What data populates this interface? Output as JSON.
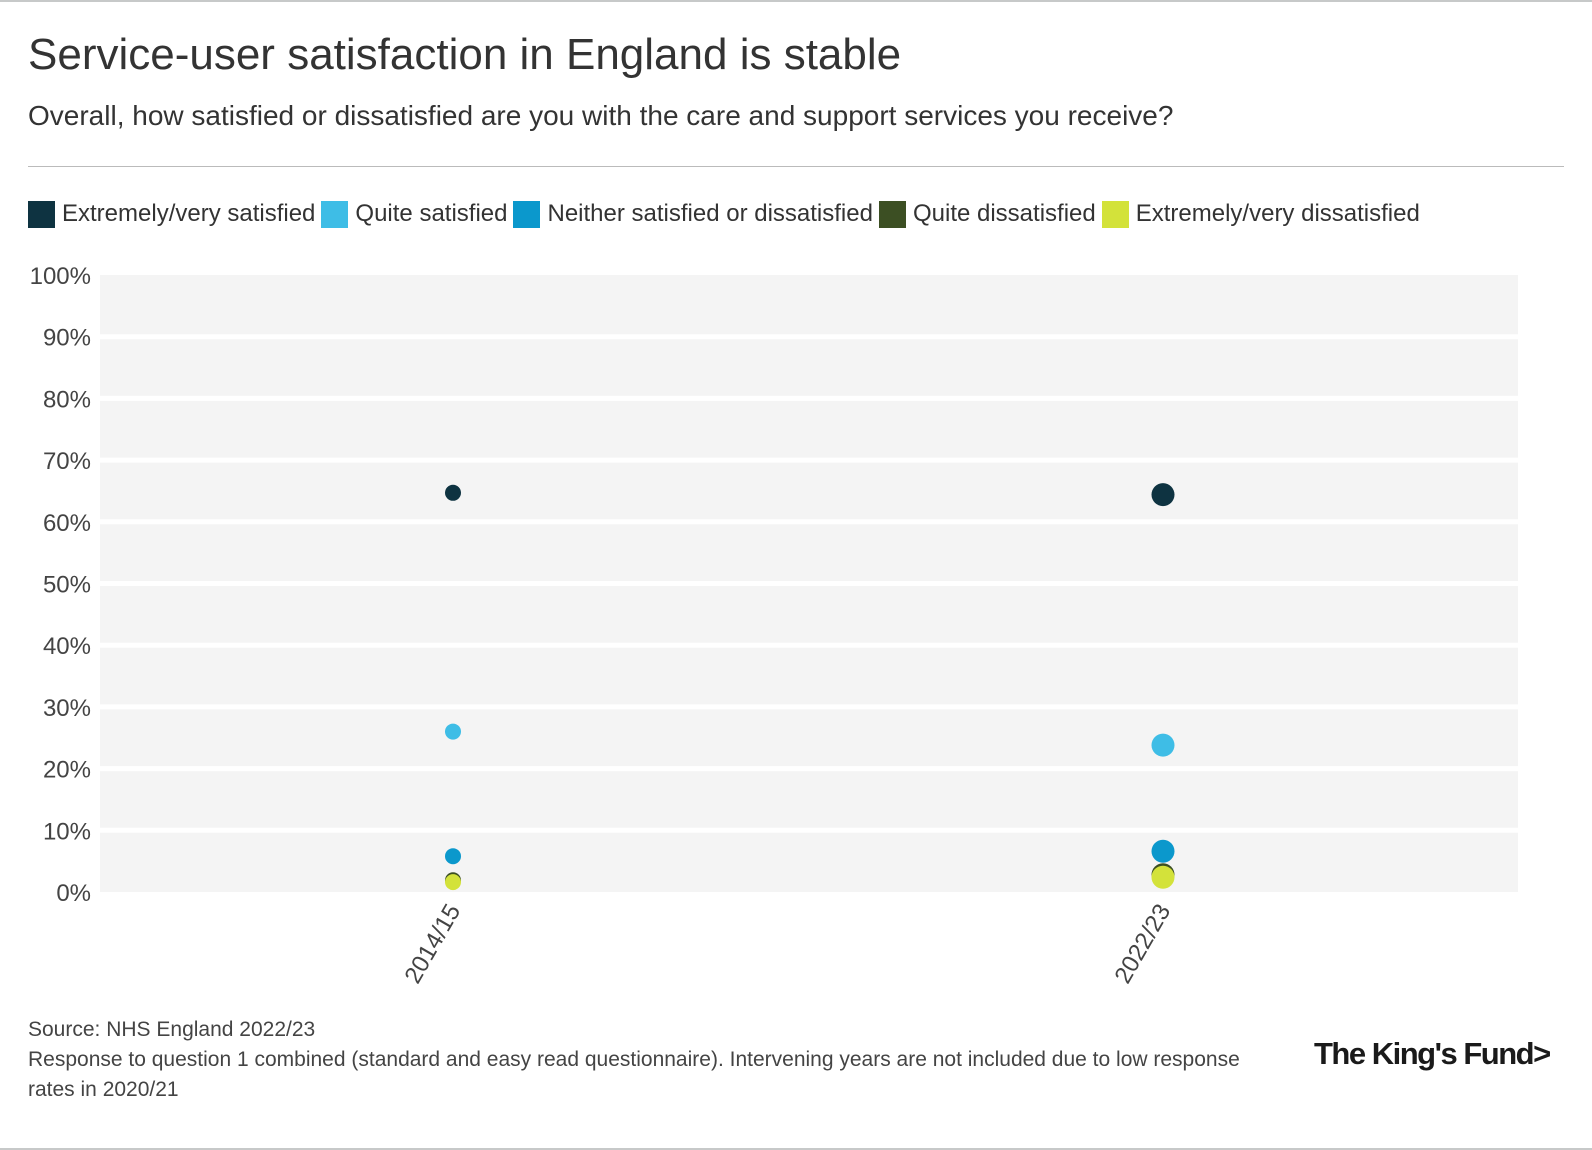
{
  "header": {
    "title": "Service-user satisfaction in England is stable",
    "subtitle": "Overall, how satisfied or dissatisfied are you with the care and support services you receive?"
  },
  "legend": {
    "items": [
      {
        "label": "Extremely/very satisfied",
        "color": "#0e3341"
      },
      {
        "label": "Quite satisfied",
        "color": "#3ebde6"
      },
      {
        "label": "Neither satisfied or dissatisfied",
        "color": "#0b98cc"
      },
      {
        "label": "Quite dissatisfied",
        "color": "#3c4f23"
      },
      {
        "label": "Extremely/very dissatisfied",
        "color": "#d3e23a"
      }
    ]
  },
  "chart_data": {
    "type": "scatter",
    "title": "Service-user satisfaction in England is stable",
    "xlabel": "",
    "ylabel": "",
    "categories": [
      "2014/15",
      "2022/23"
    ],
    "ylim": [
      0,
      100
    ],
    "yticks": [
      0,
      10,
      20,
      30,
      40,
      50,
      60,
      70,
      80,
      90,
      100
    ],
    "ytick_labels": [
      "0%",
      "10%",
      "20%",
      "30%",
      "40%",
      "50%",
      "60%",
      "70%",
      "80%",
      "90%",
      "100%"
    ],
    "grid": true,
    "series": [
      {
        "name": "Extremely/very satisfied",
        "color": "#0e3341",
        "values": [
          64.7,
          64.4
        ]
      },
      {
        "name": "Quite satisfied",
        "color": "#3ebde6",
        "values": [
          26.0,
          23.8
        ]
      },
      {
        "name": "Neither satisfied or dissatisfied",
        "color": "#0b98cc",
        "values": [
          5.8,
          6.6
        ]
      },
      {
        "name": "Quite dissatisfied",
        "color": "#3c4f23",
        "values": [
          1.9,
          2.8
        ]
      },
      {
        "name": "Extremely/very dissatisfied",
        "color": "#d3e23a",
        "values": [
          1.6,
          2.4
        ]
      }
    ]
  },
  "footer": {
    "source": "Source: NHS England 2022/23",
    "note": "Response to question 1 combined (standard and easy read questionnaire). Intervening years are not included due to low response rates in 2020/21"
  },
  "brand": {
    "logo_text": "The King's Fund>"
  }
}
